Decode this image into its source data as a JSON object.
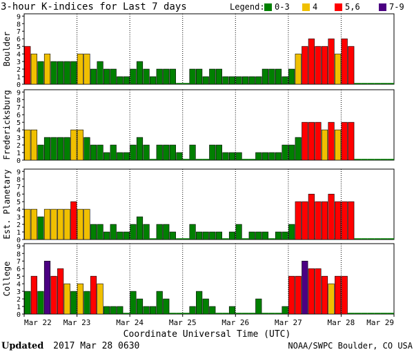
{
  "header": {
    "title": "3-hour K-indices for Last 7 days",
    "legend_label": "Legend:",
    "legend": [
      {
        "label": "0-3",
        "color": "#008000"
      },
      {
        "label": "4",
        "color": "#f0c000"
      },
      {
        "label": "5,6",
        "color": "#ff0000"
      },
      {
        "label": "7-9",
        "color": "#4b0082"
      }
    ]
  },
  "footer": {
    "updated_label": "Updated",
    "updated_value": "2017 Mar 28 0630",
    "credit": "NOAA/SWPC Boulder, CO USA"
  },
  "chart_data": {
    "type": "bar",
    "xlabel": "Coordinate Universal Time (UTC)",
    "x_ticks": [
      "Mar 22",
      "Mar 23",
      "Mar 24",
      "Mar 25",
      "Mar 26",
      "Mar 27",
      "Mar 28",
      "Mar 29"
    ],
    "y_ticks": [
      0,
      1,
      2,
      3,
      4,
      5,
      6,
      7,
      8,
      9
    ],
    "ylim": [
      0,
      9
    ],
    "color_scale": {
      "0-3": "#008000",
      "4": "#f0c000",
      "5,6": "#ff0000",
      "7-9": "#4b0082"
    },
    "interval_hours": 3,
    "panels": [
      {
        "name": "Boulder",
        "values": [
          5,
          4,
          3,
          4,
          3,
          3,
          3,
          3,
          4,
          4,
          2,
          3,
          2,
          2,
          1,
          1,
          2,
          3,
          2,
          1,
          2,
          2,
          2,
          0,
          0,
          2,
          2,
          1,
          2,
          2,
          1,
          1,
          1,
          1,
          1,
          1,
          2,
          2,
          2,
          1,
          2,
          4,
          5,
          6,
          5,
          5,
          6,
          4,
          6,
          5,
          0,
          0,
          0,
          0,
          0,
          0
        ]
      },
      {
        "name": "Fredericksburg",
        "values": [
          4,
          4,
          2,
          3,
          3,
          3,
          3,
          4,
          4,
          3,
          2,
          2,
          1,
          2,
          1,
          1,
          2,
          3,
          2,
          0,
          2,
          2,
          2,
          1,
          0,
          2,
          0,
          0,
          2,
          2,
          1,
          1,
          1,
          0,
          0,
          1,
          1,
          1,
          1,
          2,
          2,
          3,
          5,
          5,
          5,
          4,
          5,
          4,
          5,
          5,
          0,
          0,
          0,
          0,
          0,
          0
        ]
      },
      {
        "name": "Est. Planetary",
        "values": [
          4,
          4,
          3,
          4,
          4,
          4,
          4,
          5,
          4,
          4,
          2,
          2,
          1,
          2,
          1,
          1,
          2,
          3,
          2,
          0,
          2,
          2,
          1,
          0,
          0,
          2,
          1,
          1,
          1,
          1,
          0,
          1,
          2,
          0,
          1,
          1,
          1,
          0,
          1,
          1,
          2,
          5,
          5,
          6,
          5,
          5,
          6,
          5,
          5,
          5,
          0,
          0,
          0,
          0,
          0,
          0
        ]
      },
      {
        "name": "College",
        "values": [
          3,
          5,
          3,
          7,
          5,
          6,
          4,
          3,
          4,
          3,
          5,
          4,
          1,
          1,
          1,
          0,
          3,
          2,
          1,
          1,
          3,
          2,
          0,
          0,
          0,
          1,
          3,
          2,
          1,
          0,
          0,
          1,
          0,
          0,
          0,
          2,
          0,
          0,
          0,
          1,
          5,
          5,
          7,
          6,
          6,
          5,
          4,
          5,
          5,
          0,
          0,
          0,
          0,
          0,
          0,
          0
        ]
      }
    ]
  }
}
